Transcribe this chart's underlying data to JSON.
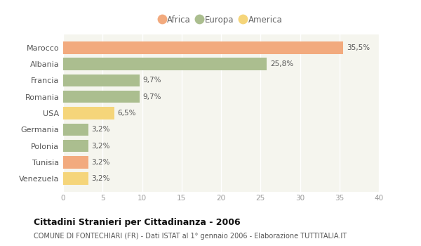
{
  "categories": [
    "Marocco",
    "Albania",
    "Francia",
    "Romania",
    "USA",
    "Germania",
    "Polonia",
    "Tunisia",
    "Venezuela"
  ],
  "values": [
    35.5,
    25.8,
    9.7,
    9.7,
    6.5,
    3.2,
    3.2,
    3.2,
    3.2
  ],
  "labels": [
    "35,5%",
    "25,8%",
    "9,7%",
    "9,7%",
    "6,5%",
    "3,2%",
    "3,2%",
    "3,2%",
    "3,2%"
  ],
  "continents": [
    "Africa",
    "Europa",
    "Europa",
    "Europa",
    "America",
    "Europa",
    "Europa",
    "Africa",
    "America"
  ],
  "colors": {
    "Africa": "#F2AA7E",
    "Europa": "#ABBE8F",
    "America": "#F5D57A"
  },
  "legend_order": [
    "Africa",
    "Europa",
    "America"
  ],
  "xlim": [
    0,
    40
  ],
  "xticks": [
    0,
    5,
    10,
    15,
    20,
    25,
    30,
    35,
    40
  ],
  "title": "Cittadini Stranieri per Cittadinanza - 2006",
  "subtitle": "COMUNE DI FONTECHIARI (FR) - Dati ISTAT al 1° gennaio 2006 - Elaborazione TUTTITALIA.IT",
  "fig_bg_color": "#ffffff",
  "plot_bg_color": "#f5f5ee",
  "grid_color": "#ffffff",
  "bar_height": 0.75
}
